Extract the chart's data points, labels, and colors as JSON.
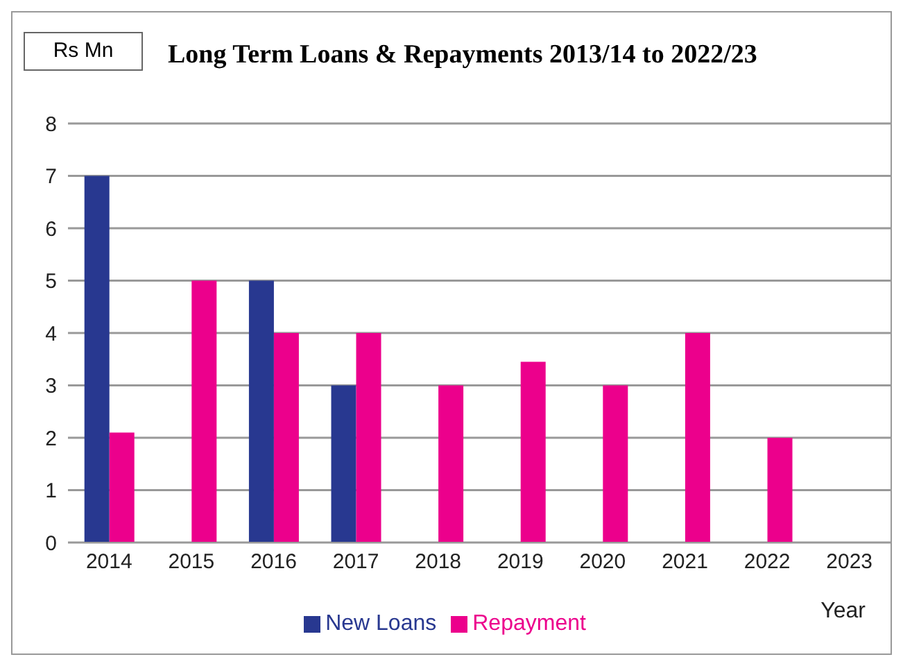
{
  "chart_data": {
    "type": "bar",
    "title": "Long Term Loans & Repayments 2013/14 to 2022/23",
    "ylabel": "Rs Mn",
    "xlabel": "Year",
    "categories": [
      "2014",
      "2015",
      "2016",
      "2017",
      "2018",
      "2019",
      "2020",
      "2021",
      "2022",
      "2023"
    ],
    "series": [
      {
        "name": "New Loans",
        "color": "#283890",
        "values": [
          7,
          null,
          5,
          3,
          null,
          null,
          null,
          null,
          null,
          null
        ]
      },
      {
        "name": "Repayment",
        "color": "#ec008c",
        "values": [
          2.1,
          5,
          4,
          4,
          3,
          3.45,
          3,
          4,
          2,
          null
        ]
      }
    ],
    "ylim": [
      0,
      8
    ],
    "yticks": [
      0,
      1,
      2,
      3,
      4,
      5,
      6,
      7,
      8
    ],
    "grid": "y",
    "legend": "bottom"
  }
}
